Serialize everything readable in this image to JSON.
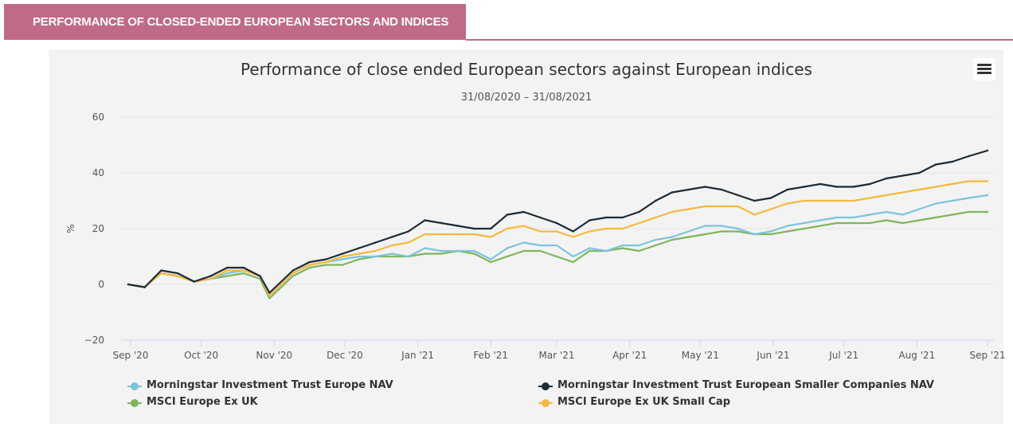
{
  "header": {
    "title": "PERFORMANCE OF CLOSED-ENDED EUROPEAN SECTORS AND INDICES"
  },
  "menu": {
    "icon": "hamburger-menu-icon"
  },
  "chart_data": {
    "type": "line",
    "title": "Performance of close ended European sectors against European indices",
    "subtitle": "31/08/2020 – 31/08/2021",
    "xlabel": "",
    "ylabel": "%",
    "ylim": [
      -20,
      60
    ],
    "yticks": [
      -20,
      0,
      20,
      40,
      60
    ],
    "xticks": [
      "Sep '20",
      "Oct '20",
      "Nov '20",
      "Dec '20",
      "Jan '21",
      "Feb '21",
      "Mar '21",
      "Apr '21",
      "May '21",
      "Jun '21",
      "Jul '21",
      "Aug '21",
      "Sep '21"
    ],
    "grid": true,
    "legend_position": "bottom",
    "x": [
      "2020-08-31",
      "2020-09-07",
      "2020-09-14",
      "2020-09-21",
      "2020-09-28",
      "2020-10-05",
      "2020-10-12",
      "2020-10-19",
      "2020-10-26",
      "2020-10-30",
      "2020-11-09",
      "2020-11-16",
      "2020-11-23",
      "2020-11-30",
      "2020-12-07",
      "2020-12-14",
      "2020-12-21",
      "2020-12-28",
      "2021-01-04",
      "2021-01-11",
      "2021-01-18",
      "2021-01-25",
      "2021-02-01",
      "2021-02-08",
      "2021-02-15",
      "2021-02-22",
      "2021-03-01",
      "2021-03-08",
      "2021-03-15",
      "2021-03-22",
      "2021-03-29",
      "2021-04-05",
      "2021-04-12",
      "2021-04-19",
      "2021-04-26",
      "2021-05-03",
      "2021-05-10",
      "2021-05-17",
      "2021-05-24",
      "2021-05-31",
      "2021-06-07",
      "2021-06-14",
      "2021-06-21",
      "2021-06-28",
      "2021-07-05",
      "2021-07-12",
      "2021-07-19",
      "2021-07-26",
      "2021-08-02",
      "2021-08-09",
      "2021-08-16",
      "2021-08-23",
      "2021-08-31"
    ],
    "series": [
      {
        "name": "Morningstar Investment Trust Europe NAV",
        "color": "#7cc4dc",
        "values": [
          0,
          -1,
          4,
          3,
          1,
          2,
          4,
          5,
          3,
          -4,
          4,
          7,
          8,
          9,
          10,
          10,
          11,
          10,
          13,
          12,
          12,
          12,
          9,
          13,
          15,
          14,
          14,
          10,
          13,
          12,
          14,
          14,
          16,
          17,
          19,
          21,
          21,
          20,
          18,
          19,
          21,
          22,
          23,
          24,
          24,
          25,
          26,
          25,
          27,
          29,
          30,
          31,
          32
        ]
      },
      {
        "name": "Morningstar Investment Trust European Smaller Companies NAV",
        "color": "#1c2b36",
        "values": [
          0,
          -1,
          5,
          4,
          1,
          3,
          6,
          6,
          3,
          -3,
          5,
          8,
          9,
          11,
          13,
          15,
          17,
          19,
          23,
          22,
          21,
          20,
          20,
          25,
          26,
          24,
          22,
          19,
          23,
          24,
          24,
          26,
          30,
          33,
          34,
          35,
          34,
          32,
          30,
          31,
          34,
          35,
          36,
          35,
          35,
          36,
          38,
          39,
          40,
          43,
          44,
          46,
          48
        ]
      },
      {
        "name": "MSCI Europe Ex UK",
        "color": "#7fb65c",
        "values": [
          0,
          -1,
          4,
          3,
          1,
          2,
          3,
          4,
          2,
          -5,
          3,
          6,
          7,
          7,
          9,
          10,
          10,
          10,
          11,
          11,
          12,
          11,
          8,
          10,
          12,
          12,
          10,
          8,
          12,
          12,
          13,
          12,
          14,
          16,
          17,
          18,
          19,
          19,
          18,
          18,
          19,
          20,
          21,
          22,
          22,
          22,
          23,
          22,
          23,
          24,
          25,
          26,
          26
        ]
      },
      {
        "name": "MSCI Europe Ex UK Small Cap",
        "color": "#f5b93f",
        "values": [
          0,
          -1,
          4,
          3,
          1,
          2,
          5,
          5,
          3,
          -4,
          4,
          7,
          8,
          10,
          11,
          12,
          14,
          15,
          18,
          18,
          18,
          18,
          17,
          20,
          21,
          19,
          19,
          17,
          19,
          20,
          20,
          22,
          24,
          26,
          27,
          28,
          28,
          28,
          25,
          27,
          29,
          30,
          30,
          30,
          30,
          31,
          32,
          33,
          34,
          35,
          36,
          37,
          37
        ]
      }
    ]
  }
}
